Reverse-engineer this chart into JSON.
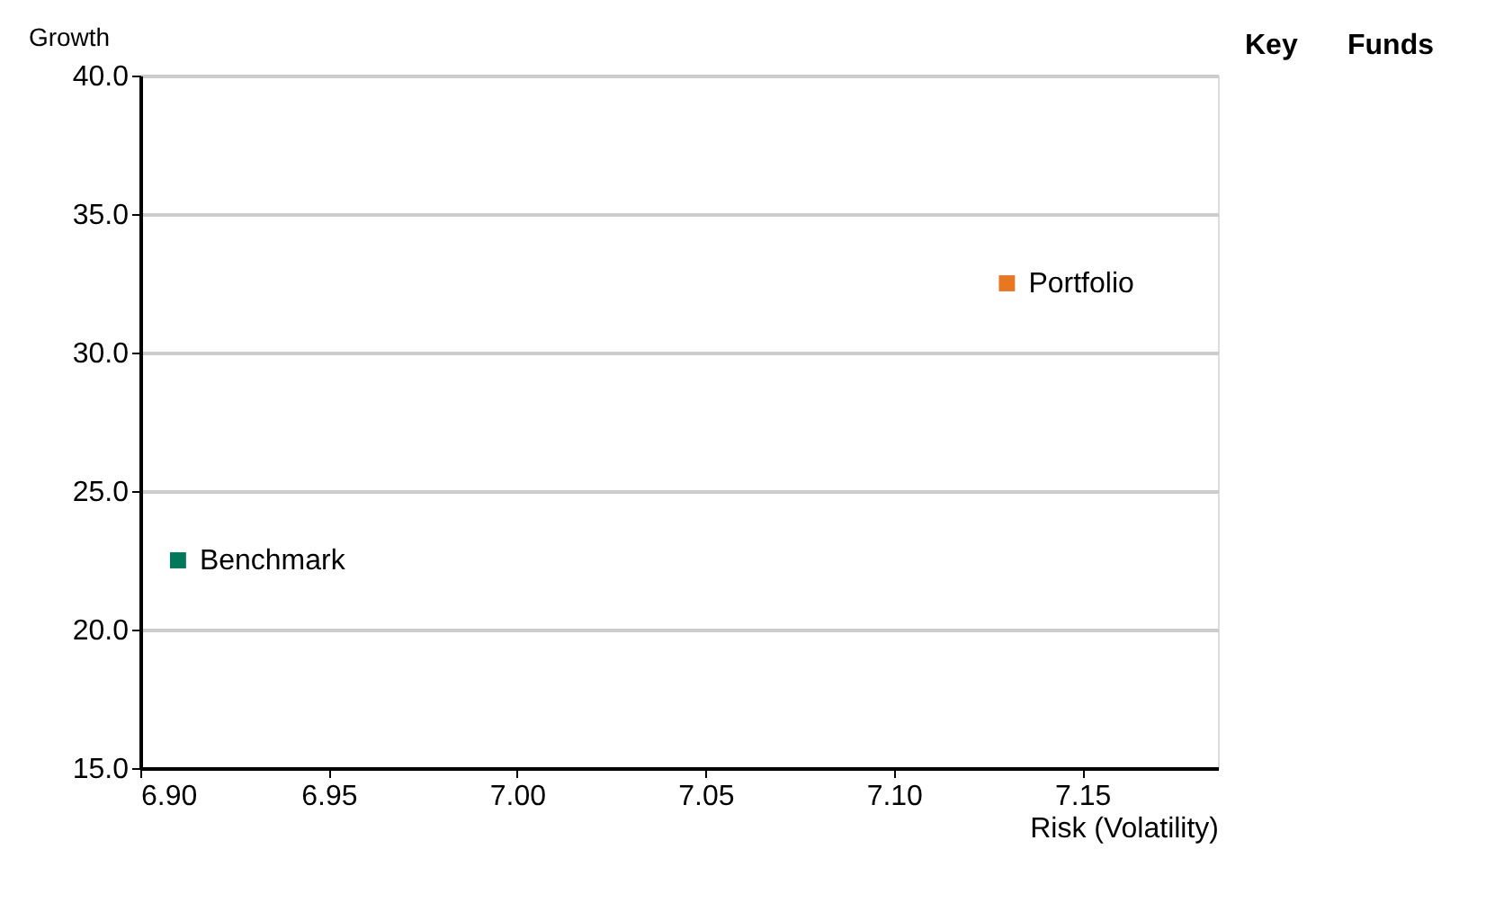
{
  "chart_data": {
    "type": "scatter",
    "xlabel": "Risk (Volatility)",
    "ylabel": "Growth",
    "annotations": [
      "Key",
      "Funds"
    ],
    "series": [
      {
        "name": "Portfolio",
        "color": "#e87722",
        "x": [
          7.13
        ],
        "values": [
          32.5
        ]
      },
      {
        "name": "Benchmark",
        "color": "#00785a",
        "x": [
          6.91
        ],
        "values": [
          22.5
        ]
      }
    ],
    "xlim": [
      6.9,
      7.186
    ],
    "xticks": [
      {
        "value": 6.9,
        "label": "6.90"
      },
      {
        "value": 6.95,
        "label": "6.95"
      },
      {
        "value": 7.0,
        "label": "7.00"
      },
      {
        "value": 7.05,
        "label": "7.05"
      },
      {
        "value": 7.1,
        "label": "7.10"
      },
      {
        "value": 7.15,
        "label": "7.15"
      }
    ],
    "ylim": [
      15,
      40
    ],
    "yticks": [
      {
        "value": 15,
        "label": "15.0"
      },
      {
        "value": 20,
        "label": "20.0"
      },
      {
        "value": 25,
        "label": "25.0"
      },
      {
        "value": 30,
        "label": "30.0"
      },
      {
        "value": 35,
        "label": "35.0"
      },
      {
        "value": 40,
        "label": "40.0"
      }
    ],
    "grid": "y",
    "marker": "square",
    "data_labels": false
  }
}
